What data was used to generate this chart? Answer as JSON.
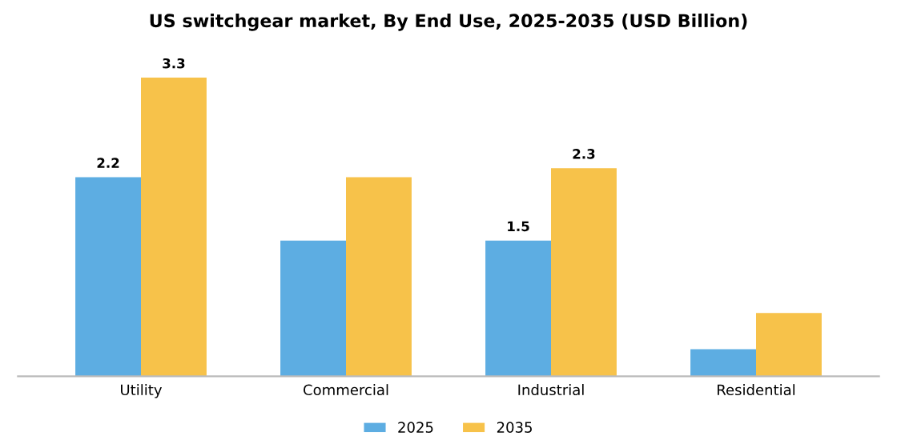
{
  "chart_data": {
    "type": "bar",
    "title": "US switchgear market, By End Use, 2025-2035 (USD Billion)",
    "categories": [
      "Utility",
      "Commercial",
      "Industrial",
      "Residential"
    ],
    "series": [
      {
        "name": "2025",
        "color": "#5dade2",
        "values": [
          2.2,
          1.5,
          1.5,
          0.3
        ],
        "value_labels": [
          "2.2",
          null,
          "1.5",
          null
        ]
      },
      {
        "name": "2035",
        "color": "#f7c24a",
        "values": [
          3.3,
          2.2,
          2.3,
          0.7
        ],
        "value_labels": [
          "3.3",
          null,
          "2.3",
          null
        ]
      }
    ],
    "legend": "bottom",
    "grid": false
  }
}
